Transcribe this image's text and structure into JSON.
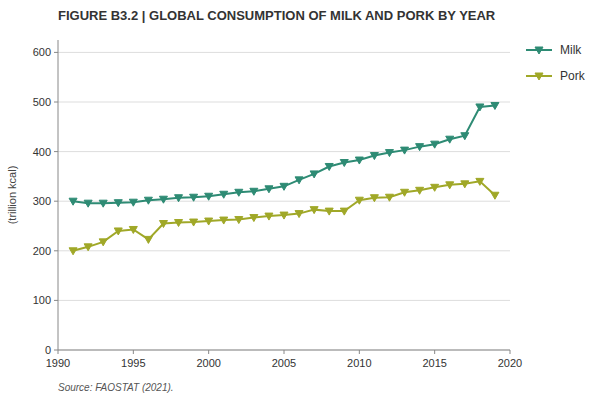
{
  "chart_data": {
    "type": "line",
    "title": "FIGURE B3.2 | GLOBAL CONSUMPTION OF MILK AND PORK BY YEAR",
    "ylabel": "(trillion kcal)",
    "annotations": [
      "Source: FAOSTAT (2021)."
    ],
    "x": [
      1991,
      1992,
      1993,
      1994,
      1995,
      1996,
      1997,
      1998,
      1999,
      2000,
      2001,
      2002,
      2003,
      2004,
      2005,
      2006,
      2007,
      2008,
      2009,
      2010,
      2011,
      2012,
      2013,
      2014,
      2015,
      2016,
      2017,
      2018,
      2019
    ],
    "series": [
      {
        "name": "Milk",
        "color": "#2e8b74",
        "marker": "triangle-down",
        "values": [
          300,
          296,
          296,
          297,
          298,
          302,
          304,
          307,
          308,
          310,
          314,
          318,
          320,
          325,
          330,
          343,
          355,
          370,
          378,
          383,
          392,
          398,
          403,
          410,
          415,
          425,
          432,
          490,
          493
        ]
      },
      {
        "name": "Pork",
        "color": "#a0a828",
        "marker": "triangle-down",
        "values": [
          200,
          208,
          218,
          240,
          243,
          223,
          255,
          257,
          258,
          260,
          262,
          263,
          267,
          270,
          272,
          275,
          283,
          280,
          280,
          302,
          307,
          308,
          318,
          322,
          328,
          333,
          335,
          340,
          312
        ]
      }
    ],
    "xlim": [
      1990,
      2020
    ],
    "ylim": [
      0,
      625
    ],
    "xticks": [
      1990,
      1995,
      2000,
      2005,
      2010,
      2015,
      2020
    ],
    "yticks": [
      0,
      100,
      200,
      300,
      400,
      500,
      600
    ],
    "grid": true,
    "legend": "right"
  }
}
